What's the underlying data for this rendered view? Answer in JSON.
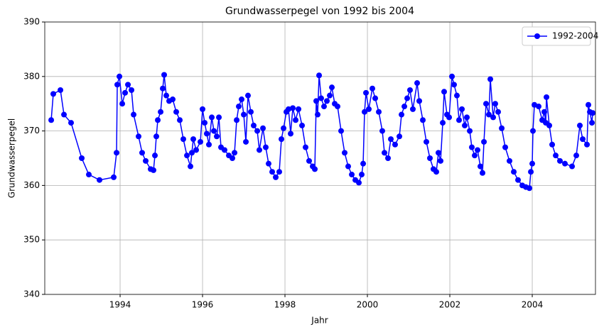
{
  "chart_data": {
    "type": "line",
    "title": "Grundwasserpegel von 1992 bis 2004",
    "xlabel": "Jahr",
    "ylabel": "Grundwasserpegel",
    "x": [
      1992.328,
      1992.379,
      1992.552,
      1992.638,
      1992.81,
      1993.069,
      1993.241,
      1993.5,
      1993.845,
      1993.914,
      1993.931,
      1993.983,
      1994.052,
      1994.121,
      1994.19,
      1994.276,
      1994.328,
      1994.448,
      1994.534,
      1994.621,
      1994.741,
      1994.81,
      1994.845,
      1994.879,
      1994.914,
      1994.983,
      1995.034,
      1995.069,
      1995.121,
      1995.19,
      1995.276,
      1995.362,
      1995.448,
      1995.534,
      1995.621,
      1995.707,
      1995.741,
      1995.776,
      1995.845,
      1995.948,
      1996.0,
      1996.052,
      1996.103,
      1996.155,
      1996.224,
      1996.276,
      1996.345,
      1996.397,
      1996.448,
      1996.534,
      1996.638,
      1996.724,
      1996.776,
      1996.828,
      1996.879,
      1996.948,
      1997.0,
      1997.052,
      1997.103,
      1997.172,
      1997.241,
      1997.328,
      1997.379,
      1997.466,
      1997.534,
      1997.603,
      1997.69,
      1997.776,
      1997.862,
      1997.914,
      1997.966,
      1998.034,
      1998.086,
      1998.138,
      1998.19,
      1998.259,
      1998.328,
      1998.414,
      1998.5,
      1998.586,
      1998.672,
      1998.724,
      1998.759,
      1998.793,
      1998.828,
      1998.879,
      1998.948,
      1999.017,
      1999.086,
      1999.138,
      1999.207,
      1999.276,
      1999.362,
      1999.448,
      1999.534,
      1999.621,
      1999.707,
      1999.793,
      1999.862,
      1999.897,
      1999.931,
      1999.966,
      2000.034,
      2000.121,
      2000.19,
      2000.276,
      2000.362,
      2000.414,
      2000.5,
      2000.569,
      2000.672,
      2000.776,
      2000.828,
      2000.897,
      2000.966,
      2001.034,
      2001.103,
      2001.207,
      2001.259,
      2001.345,
      2001.431,
      2001.517,
      2001.603,
      2001.672,
      2001.724,
      2001.776,
      2001.828,
      2001.862,
      2001.931,
      2001.983,
      2002.052,
      2002.103,
      2002.172,
      2002.224,
      2002.293,
      2002.362,
      2002.414,
      2002.483,
      2002.534,
      2002.603,
      2002.672,
      2002.741,
      2002.793,
      2002.828,
      2002.879,
      2002.948,
      2002.983,
      2003.052,
      2003.103,
      2003.172,
      2003.259,
      2003.345,
      2003.448,
      2003.552,
      2003.655,
      2003.759,
      2003.845,
      2003.931,
      2003.966,
      2004.0,
      2004.017,
      2004.052,
      2004.155,
      2004.241,
      2004.293,
      2004.328,
      2004.345,
      2004.414,
      2004.483,
      2004.569,
      2004.672,
      2004.793,
      2004.966,
      2005.069,
      2005.155,
      2005.224,
      2005.328,
      2005.362,
      2005.397,
      2005.448,
      2005.466
    ],
    "series": [
      {
        "name": "1992-2004",
        "color": "#0000ff",
        "values": [
          372,
          376.8,
          377.5,
          373,
          371.5,
          365,
          362,
          361,
          361.5,
          366,
          378.5,
          380,
          375,
          377,
          378.5,
          377.5,
          373,
          369,
          366,
          364.5,
          363,
          362.8,
          365.5,
          369,
          372,
          373.5,
          377.8,
          380.3,
          376.5,
          375.5,
          375.8,
          373.5,
          372,
          368.5,
          365.5,
          363.5,
          366,
          368.5,
          366.5,
          368,
          374,
          371.5,
          369.5,
          367.5,
          372.5,
          370,
          369,
          372.5,
          367,
          366.5,
          365.5,
          365,
          366,
          372,
          374.5,
          375.8,
          373,
          368,
          376.5,
          373.5,
          371,
          370,
          366.5,
          370.5,
          367,
          364,
          362.5,
          361.5,
          362.5,
          368.5,
          370.5,
          373.5,
          374,
          369.5,
          374.2,
          372,
          374,
          371,
          367,
          364.5,
          363.5,
          363,
          375.5,
          373,
          380.2,
          376,
          374.5,
          375.5,
          376.5,
          378,
          375,
          374.5,
          370,
          366,
          363.5,
          362,
          361,
          360.5,
          362,
          364,
          373.5,
          377,
          374,
          377.8,
          376,
          373.5,
          370,
          366,
          365,
          368.5,
          367.5,
          369,
          373,
          374.5,
          376,
          377.5,
          374,
          378.8,
          375.5,
          372,
          368,
          365,
          363,
          362.5,
          366,
          364.5,
          371.5,
          377.2,
          373,
          372.5,
          380,
          378.5,
          376.5,
          372,
          374,
          371,
          372.5,
          370,
          367,
          365.5,
          366.5,
          363.5,
          362.3,
          368,
          375,
          373,
          379.5,
          372.5,
          375,
          373.5,
          370.5,
          367,
          364.5,
          362.5,
          361,
          360,
          359.7,
          359.5,
          362.5,
          364,
          370,
          374.8,
          374.5,
          372,
          373.5,
          371.5,
          376.2,
          371,
          367.5,
          365.5,
          364.5,
          364,
          363.5,
          365.5,
          371,
          368.5,
          367.5,
          374.8,
          373.5,
          371.5,
          373.3
        ]
      }
    ],
    "xlim": [
      1992.172,
      2005.534
    ],
    "xticks": [
      1994,
      1996,
      1998,
      2000,
      2002,
      2004
    ],
    "ylim": [
      340,
      390
    ],
    "yticks": [
      340,
      350,
      360,
      370,
      380,
      390
    ],
    "grid": true,
    "legend": "upper right"
  }
}
